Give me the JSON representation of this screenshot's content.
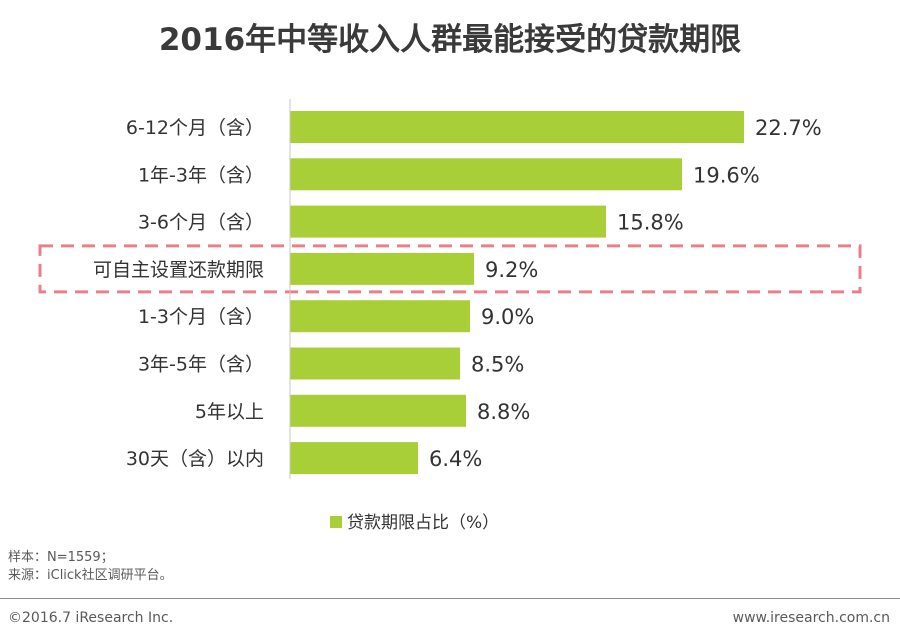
{
  "chart_data": {
    "type": "bar",
    "orientation": "horizontal",
    "title": "2016年中等收入人群最能接受的贷款期限",
    "categories": [
      "6-12个月（含）",
      "1年-3年（含）",
      "3-6个月（含）",
      "可自主设置还款期限",
      "1-3个月（含）",
      "3年-5年（含）",
      "5年以上",
      "30天（含）以内"
    ],
    "values": [
      22.7,
      19.6,
      15.8,
      9.2,
      9.0,
      8.5,
      8.8,
      6.4
    ],
    "value_labels": [
      "22.7%",
      "19.6%",
      "15.8%",
      "9.2%",
      "9.0%",
      "8.5%",
      "8.8%",
      "6.4%"
    ],
    "highlighted_category": "可自主设置还款期限",
    "legend": "贷款期限占比（%）",
    "legend_position": "bottom-center",
    "xlim": [
      0,
      25
    ],
    "grid": false,
    "bar_color": "#a8cf38",
    "highlight_color": "#e8808b"
  },
  "notes": {
    "sample": "样本：N=1559；",
    "source": "来源：iClick社区调研平台。"
  },
  "footer": {
    "copyright": "©2016.7 iResearch Inc.",
    "website": "www.iresearch.com.cn"
  }
}
